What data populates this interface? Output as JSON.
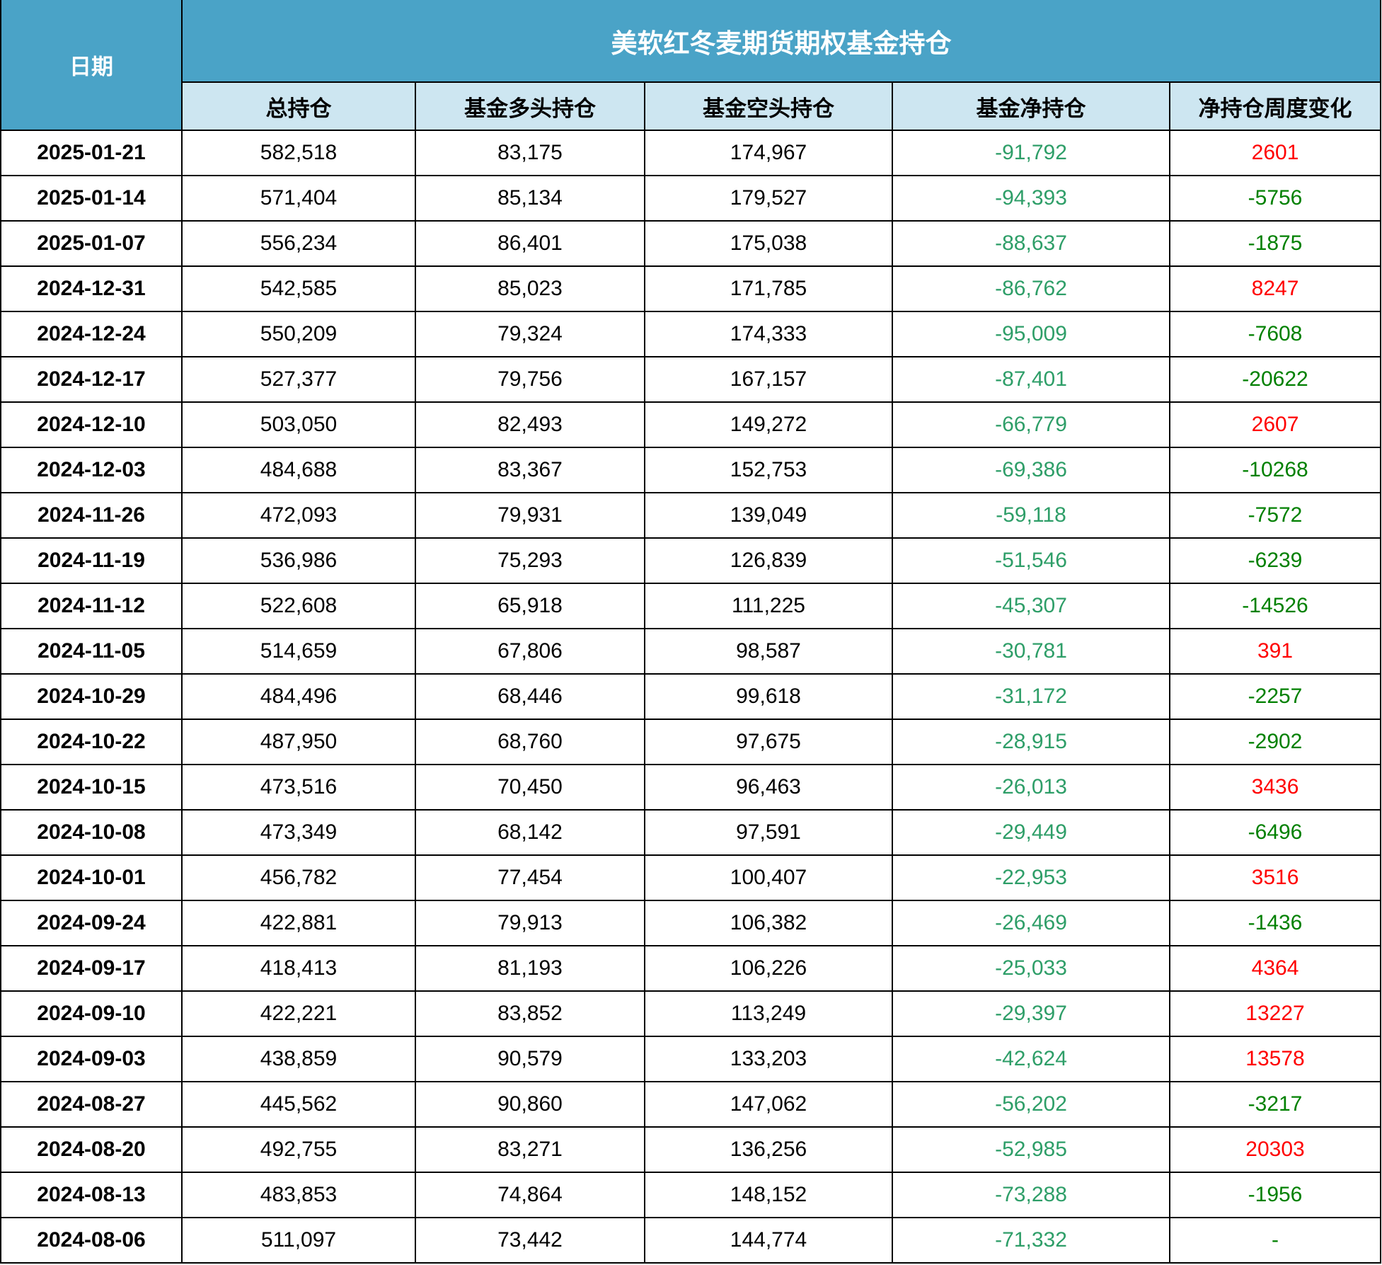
{
  "chart_data": {
    "type": "table",
    "title": "美软红冬麦期货期权基金持仓",
    "columns": [
      "日期",
      "总持仓",
      "基金多头持仓",
      "基金空头持仓",
      "基金净持仓",
      "净持仓周度变化"
    ],
    "rows": [
      [
        "2025-01-21",
        "582,518",
        "83,175",
        "174,967",
        "-91,792",
        "2601"
      ],
      [
        "2025-01-14",
        "571,404",
        "85,134",
        "179,527",
        "-94,393",
        "-5756"
      ],
      [
        "2025-01-07",
        "556,234",
        "86,401",
        "175,038",
        "-88,637",
        "-1875"
      ],
      [
        "2024-12-31",
        "542,585",
        "85,023",
        "171,785",
        "-86,762",
        "8247"
      ],
      [
        "2024-12-24",
        "550,209",
        "79,324",
        "174,333",
        "-95,009",
        "-7608"
      ],
      [
        "2024-12-17",
        "527,377",
        "79,756",
        "167,157",
        "-87,401",
        "-20622"
      ],
      [
        "2024-12-10",
        "503,050",
        "82,493",
        "149,272",
        "-66,779",
        "2607"
      ],
      [
        "2024-12-03",
        "484,688",
        "83,367",
        "152,753",
        "-69,386",
        "-10268"
      ],
      [
        "2024-11-26",
        "472,093",
        "79,931",
        "139,049",
        "-59,118",
        "-7572"
      ],
      [
        "2024-11-19",
        "536,986",
        "75,293",
        "126,839",
        "-51,546",
        "-6239"
      ],
      [
        "2024-11-12",
        "522,608",
        "65,918",
        "111,225",
        "-45,307",
        "-14526"
      ],
      [
        "2024-11-05",
        "514,659",
        "67,806",
        "98,587",
        "-30,781",
        "391"
      ],
      [
        "2024-10-29",
        "484,496",
        "68,446",
        "99,618",
        "-31,172",
        "-2257"
      ],
      [
        "2024-10-22",
        "487,950",
        "68,760",
        "97,675",
        "-28,915",
        "-2902"
      ],
      [
        "2024-10-15",
        "473,516",
        "70,450",
        "96,463",
        "-26,013",
        "3436"
      ],
      [
        "2024-10-08",
        "473,349",
        "68,142",
        "97,591",
        "-29,449",
        "-6496"
      ],
      [
        "2024-10-01",
        "456,782",
        "77,454",
        "100,407",
        "-22,953",
        "3516"
      ],
      [
        "2024-09-24",
        "422,881",
        "79,913",
        "106,382",
        "-26,469",
        "-1436"
      ],
      [
        "2024-09-17",
        "418,413",
        "81,193",
        "106,226",
        "-25,033",
        "4364"
      ],
      [
        "2024-09-10",
        "422,221",
        "83,852",
        "113,249",
        "-29,397",
        "13227"
      ],
      [
        "2024-09-03",
        "438,859",
        "90,579",
        "133,203",
        "-42,624",
        "13578"
      ],
      [
        "2024-08-27",
        "445,562",
        "90,860",
        "147,062",
        "-56,202",
        "-3217"
      ],
      [
        "2024-08-20",
        "492,755",
        "83,271",
        "136,256",
        "-52,985",
        "20303"
      ],
      [
        "2024-08-13",
        "483,853",
        "74,864",
        "148,152",
        "-73,288",
        "-1956"
      ],
      [
        "2024-08-06",
        "511,097",
        "73,442",
        "144,774",
        "-71,332",
        "-"
      ]
    ]
  },
  "colors": {
    "header_blue": "#4aa3c7",
    "subheader_blue": "#cde6f1",
    "net_green": "#2e9e68",
    "decrease_green": "#008000",
    "increase_red": "#ff0000",
    "border_black": "#000000"
  }
}
